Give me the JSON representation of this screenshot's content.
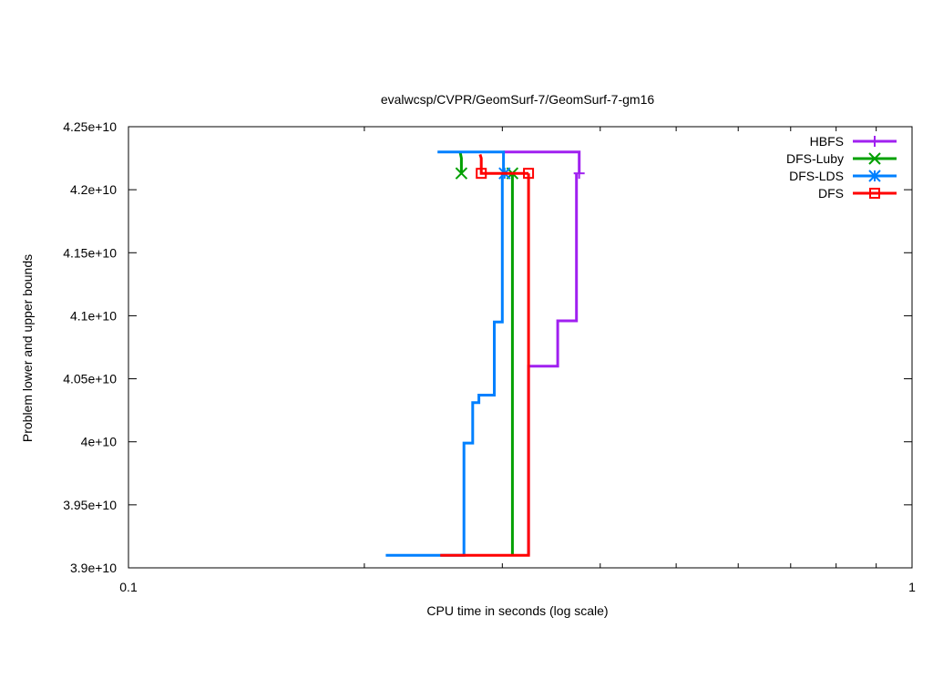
{
  "chart_data": {
    "type": "line",
    "title": "evalwcsp/CVPR/GeomSurf-7/GeomSurf-7-gm16",
    "xlabel": "CPU time in seconds (log scale)",
    "ylabel": "Problem lower and upper bounds",
    "xscale": "log",
    "xlim": [
      0.1,
      1
    ],
    "ylim": [
      39000000000,
      42500000000
    ],
    "x_ticks": [
      0.1,
      1
    ],
    "x_tick_labels": [
      "0.1",
      "1"
    ],
    "y_ticks": [
      39000000000,
      39500000000,
      40000000000,
      40500000000,
      41000000000,
      41500000000,
      42000000000,
      42500000000
    ],
    "y_tick_labels": [
      "3.9e+10",
      "3.95e+10",
      "4e+10",
      "4.05e+10",
      "4.1e+10",
      "4.15e+10",
      "4.2e+10",
      "4.25e+10"
    ],
    "grid": false,
    "legend_position": "top-right",
    "series": [
      {
        "name": "HBFS",
        "color": "#a020f0",
        "marker": "plus",
        "lower": [
          [
            0.324,
            39100000000
          ],
          [
            0.324,
            40600000000
          ],
          [
            0.353,
            40600000000
          ],
          [
            0.353,
            40960000000
          ],
          [
            0.373,
            40960000000
          ],
          [
            0.373,
            42130000000
          ]
        ],
        "upper": [
          [
            0.301,
            42300000000
          ],
          [
            0.376,
            42300000000
          ],
          [
            0.376,
            42130000000
          ]
        ],
        "marker_points": [
          [
            0.376,
            42130000000
          ]
        ]
      },
      {
        "name": "DFS-Luby",
        "color": "#00a000",
        "marker": "x",
        "lower": [
          [
            0.309,
            39100000000
          ],
          [
            0.309,
            42130000000
          ]
        ],
        "upper": [
          [
            0.265,
            42300000000
          ],
          [
            0.266,
            42250000000
          ],
          [
            0.266,
            42130000000
          ]
        ],
        "marker_points": [
          [
            0.266,
            42130000000
          ],
          [
            0.309,
            42130000000
          ]
        ]
      },
      {
        "name": "DFS-LDS",
        "color": "#0080ff",
        "marker": "star",
        "lower": [
          [
            0.213,
            39100000000
          ],
          [
            0.268,
            39100000000
          ],
          [
            0.268,
            39990000000
          ],
          [
            0.275,
            39990000000
          ],
          [
            0.275,
            40310000000
          ],
          [
            0.28,
            40310000000
          ],
          [
            0.28,
            40370000000
          ],
          [
            0.293,
            40370000000
          ],
          [
            0.293,
            40950000000
          ],
          [
            0.3,
            40950000000
          ],
          [
            0.3,
            42130000000
          ]
        ],
        "upper": [
          [
            0.248,
            42300000000
          ],
          [
            0.301,
            42300000000
          ],
          [
            0.301,
            42130000000
          ]
        ],
        "marker_points": [
          [
            0.302,
            42130000000
          ]
        ]
      },
      {
        "name": "DFS",
        "color": "#ff0000",
        "marker": "square",
        "lower": [
          [
            0.25,
            39100000000
          ],
          [
            0.324,
            39100000000
          ],
          [
            0.324,
            42130000000
          ]
        ],
        "upper": [
          [
            0.281,
            42280000000
          ],
          [
            0.282,
            42250000000
          ],
          [
            0.282,
            42130000000
          ],
          [
            0.324,
            42130000000
          ]
        ],
        "marker_points": [
          [
            0.282,
            42130000000
          ],
          [
            0.324,
            42130000000
          ]
        ]
      }
    ]
  }
}
